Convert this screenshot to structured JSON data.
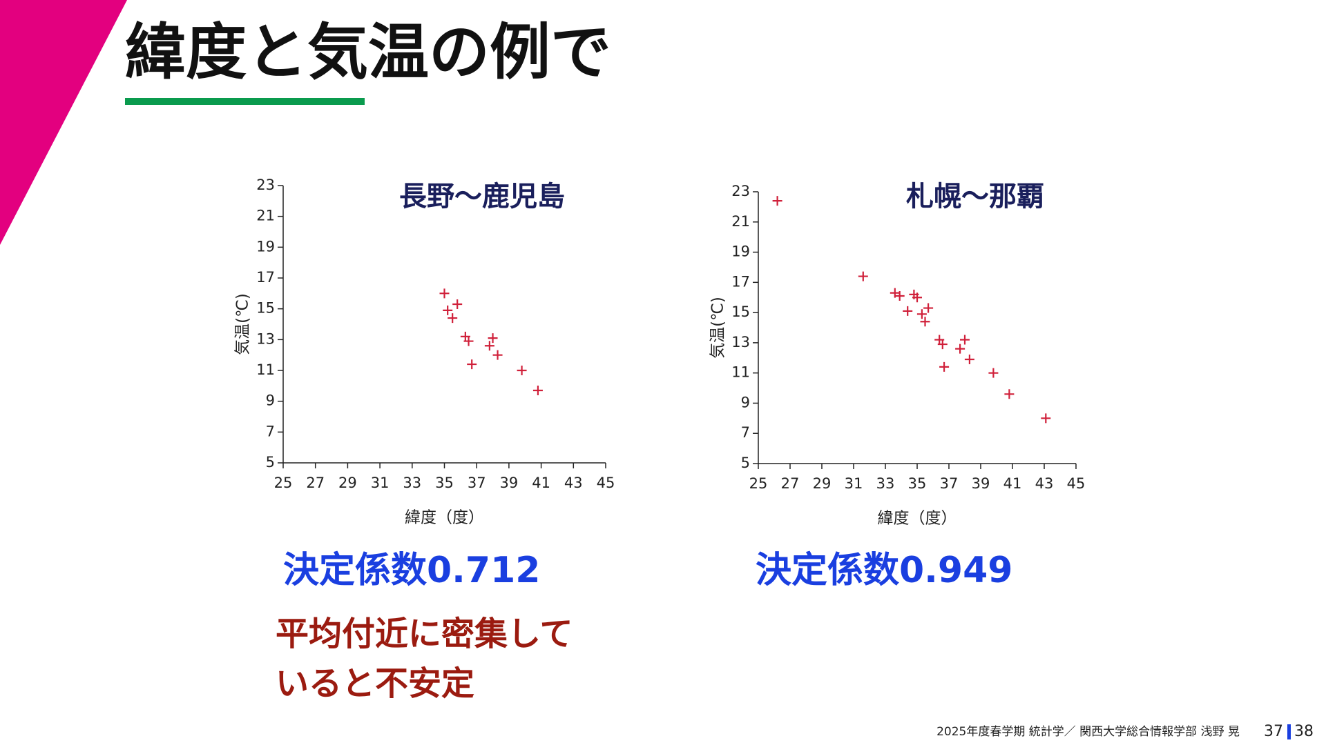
{
  "title": "緯度と気温の例で",
  "chart_data": [
    {
      "type": "scatter",
      "title": "長野～鹿児島",
      "xlabel": "緯度（度）",
      "ylabel": "気温(℃)",
      "color": "#d0203a",
      "x": [
        35.0,
        35.2,
        35.8,
        35.5,
        36.3,
        36.5,
        36.7,
        37.8,
        38.0,
        38.3,
        39.8,
        40.8
      ],
      "y": [
        16.0,
        14.9,
        15.3,
        14.4,
        13.2,
        12.9,
        11.4,
        12.6,
        13.1,
        12.0,
        11.0,
        9.7
      ],
      "xlim": [
        25,
        45
      ],
      "xticks": [
        25,
        27,
        29,
        31,
        33,
        35,
        37,
        39,
        41,
        43,
        45
      ],
      "ylim": [
        5,
        23
      ],
      "yticks": [
        5,
        7,
        9,
        11,
        13,
        15,
        17,
        19,
        21,
        23
      ]
    },
    {
      "type": "scatter",
      "title": "札幌～那覇",
      "xlabel": "緯度（度）",
      "ylabel": "気温(℃)",
      "color": "#d0203a",
      "x": [
        26.2,
        31.6,
        33.6,
        33.9,
        34.8,
        35.0,
        34.4,
        35.3,
        35.7,
        35.5,
        36.4,
        36.6,
        36.7,
        37.7,
        38.0,
        38.3,
        39.8,
        40.8,
        43.1
      ],
      "y": [
        22.4,
        17.4,
        16.3,
        16.1,
        16.2,
        16.0,
        15.1,
        14.9,
        15.3,
        14.4,
        13.2,
        12.9,
        11.4,
        12.6,
        13.2,
        11.9,
        11.0,
        9.6,
        8.0
      ],
      "xlim": [
        25,
        45
      ],
      "xticks": [
        25,
        27,
        29,
        31,
        33,
        35,
        37,
        39,
        41,
        43,
        45
      ],
      "ylim": [
        5,
        23
      ],
      "yticks": [
        5,
        7,
        9,
        11,
        13,
        15,
        17,
        19,
        21,
        23
      ]
    }
  ],
  "coefficients": [
    "決定係数0.712",
    "決定係数0.949"
  ],
  "note": [
    "平均付近に密集して",
    "いると不安定"
  ],
  "footer": {
    "text": "2025年度春学期 統計学／ 関西大学総合情報学部 浅野 晃",
    "page": "37",
    "total": "38"
  }
}
